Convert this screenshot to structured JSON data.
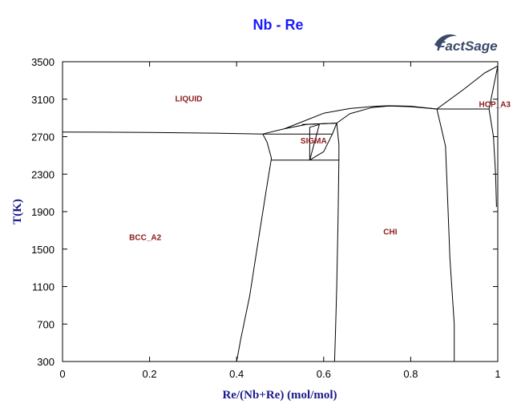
{
  "chart_data": {
    "type": "line",
    "title": "Nb - Re",
    "xlabel": "Re/(Nb+Re) (mol/mol)",
    "ylabel": "T(K)",
    "xlim": [
      0,
      1
    ],
    "ylim": [
      300,
      3500
    ],
    "x_ticks": [
      {
        "value": 0,
        "label": "0"
      },
      {
        "value": 0.2,
        "label": "0.2"
      },
      {
        "value": 0.4,
        "label": "0.4"
      },
      {
        "value": 0.6,
        "label": "0.6"
      },
      {
        "value": 0.8,
        "label": "0.8"
      },
      {
        "value": 1,
        "label": "1"
      }
    ],
    "y_ticks": [
      {
        "value": 300,
        "label": "300"
      },
      {
        "value": 700,
        "label": "700"
      },
      {
        "value": 1100,
        "label": "1100"
      },
      {
        "value": 1500,
        "label": "1500"
      },
      {
        "value": 1900,
        "label": "1900"
      },
      {
        "value": 2300,
        "label": "2300"
      },
      {
        "value": 2700,
        "label": "2700"
      },
      {
        "value": 3100,
        "label": "3100"
      },
      {
        "value": 3500,
        "label": "3500"
      }
    ],
    "grid": false,
    "logo": "FactSage",
    "phase_labels": [
      {
        "text": "LIQUID",
        "x": 0.29,
        "y": 3110
      },
      {
        "text": "SIGMA",
        "x": 0.577,
        "y": 2660
      },
      {
        "text": "BCC_A2",
        "x": 0.19,
        "y": 1630
      },
      {
        "text": "CHI",
        "x": 0.753,
        "y": 1690
      },
      {
        "text": "HCP_A3",
        "x": 0.98,
        "y": 3050
      }
    ],
    "series": [
      {
        "points": [
          [
            0,
            2750
          ],
          [
            0.2,
            2745
          ],
          [
            0.35,
            2738
          ],
          [
            0.46,
            2728
          ]
        ]
      },
      {
        "points": [
          [
            0.46,
            2728
          ],
          [
            0.51,
            2785
          ],
          [
            0.56,
            2830
          ],
          [
            0.63,
            2845
          ]
        ]
      },
      {
        "points": [
          [
            0.46,
            2728
          ],
          [
            0.62,
            2728
          ]
        ]
      },
      {
        "points": [
          [
            0.63,
            2845
          ],
          [
            0.66,
            2945
          ],
          [
            0.71,
            3010
          ],
          [
            0.75,
            3028
          ],
          [
            0.8,
            3020
          ],
          [
            0.86,
            2995
          ]
        ]
      },
      {
        "points": [
          [
            0.46,
            2728
          ],
          [
            0.47,
            2640
          ],
          [
            0.48,
            2470
          ],
          [
            0.467,
            2100
          ],
          [
            0.45,
            1600
          ],
          [
            0.43,
            1000
          ],
          [
            0.41,
            550
          ],
          [
            0.4,
            300
          ]
        ]
      },
      {
        "points": [
          [
            0.62,
            2728
          ],
          [
            0.6,
            2540
          ],
          [
            0.568,
            2450
          ]
        ]
      },
      {
        "points": [
          [
            0.568,
            2450
          ],
          [
            0.568,
            2800
          ],
          [
            0.59,
            2830
          ]
        ]
      },
      {
        "points": [
          [
            0.568,
            2450
          ],
          [
            0.59,
            2830
          ]
        ]
      },
      {
        "points": [
          [
            0.63,
            2845
          ],
          [
            0.63,
            2845
          ],
          [
            0.635,
            2620
          ],
          [
            0.635,
            2450
          ]
        ]
      },
      {
        "points": [
          [
            0.48,
            2450
          ],
          [
            0.635,
            2450
          ]
        ]
      },
      {
        "points": [
          [
            0.63,
            2845
          ],
          [
            0.62,
            2728
          ]
        ]
      },
      {
        "points": [
          [
            0.55,
            2830
          ],
          [
            0.63,
            2845
          ]
        ]
      },
      {
        "points": [
          [
            0.51,
            2785
          ],
          [
            0.6,
            2950
          ],
          [
            0.66,
            3000
          ],
          [
            0.72,
            3025
          ],
          [
            0.75,
            3030
          ],
          [
            0.8,
            3025
          ],
          [
            0.86,
            2995
          ]
        ]
      },
      {
        "points": [
          [
            0.635,
            2450
          ],
          [
            0.633,
            1800
          ],
          [
            0.63,
            1100
          ],
          [
            0.627,
            600
          ],
          [
            0.625,
            300
          ]
        ]
      },
      {
        "points": [
          [
            0.86,
            2995
          ],
          [
            0.98,
            2995
          ]
        ]
      },
      {
        "points": [
          [
            0.86,
            2995
          ],
          [
            0.88,
            2600
          ],
          [
            0.885,
            2000
          ],
          [
            0.89,
            1400
          ],
          [
            0.9,
            700
          ],
          [
            0.9,
            300
          ]
        ]
      },
      {
        "points": [
          [
            0.86,
            2995
          ],
          [
            0.92,
            3200
          ],
          [
            0.97,
            3380
          ],
          [
            1.0,
            3455
          ]
        ]
      },
      {
        "points": [
          [
            0.98,
            2995
          ],
          [
            1.0,
            3455
          ]
        ]
      },
      {
        "points": [
          [
            0.98,
            2995
          ],
          [
            0.99,
            2700
          ],
          [
            0.995,
            2300
          ],
          [
            0.997,
            1950
          ]
        ]
      },
      {
        "points": [
          [
            1.0,
            3455
          ],
          [
            1.0,
            1950
          ]
        ]
      }
    ]
  }
}
